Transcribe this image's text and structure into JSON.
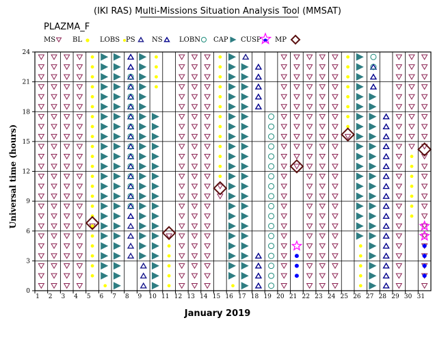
{
  "chart_data": {
    "type": "scatter",
    "title": "(IKI RAS) Multi-Missions Situation Analysis Tool (MMSAT)",
    "subtitle": "PLAZMA_F",
    "xlabel": "January 2019",
    "ylabel": "Universal time (hours)",
    "x_categories": [
      "1",
      "2",
      "3",
      "4",
      "5",
      "6",
      "7",
      "8",
      "9",
      "10",
      "11",
      "12",
      "13",
      "14",
      "15",
      "16",
      "17",
      "18",
      "19",
      "20",
      "21",
      "22",
      "23",
      "24",
      "25",
      "26",
      "27",
      "28",
      "29",
      "30",
      "31"
    ],
    "ylim": [
      0,
      24
    ],
    "yticks": [
      0,
      3,
      6,
      9,
      12,
      15,
      18,
      21,
      24
    ],
    "grid": true,
    "legend": [
      {
        "name": "MS",
        "marker": "triangle-down-open",
        "color": "#8b2252"
      },
      {
        "name": "BL",
        "marker": "dot",
        "color": "#ffff00"
      },
      {
        "name": "LOBS",
        "marker": "dot-small",
        "color": "#ffff00"
      },
      {
        "name": "PS",
        "marker": "triangle-up-open",
        "color": "#1a1a8c"
      },
      {
        "name": "NS",
        "marker": "triangle-up-open",
        "color": "#00008b"
      },
      {
        "name": "LOBN",
        "marker": "circle-open",
        "color": "#1a8a7a"
      },
      {
        "name": "CAP",
        "marker": "wedge",
        "color": "#2e7d82"
      },
      {
        "name": "CUSP",
        "marker": "dot",
        "color": "#0000ff"
      },
      {
        "name": "CUSP",
        "marker": "star-open",
        "color": "#ff00ff"
      },
      {
        "name": "MP",
        "marker": "diamond-open",
        "color": "#5a1010"
      }
    ],
    "series": [
      {
        "key": "MS",
        "segments": [
          {
            "day": 1,
            "from": 0,
            "to": 24
          },
          {
            "day": 2,
            "from": 0,
            "to": 24
          },
          {
            "day": 3,
            "from": 0,
            "to": 24
          },
          {
            "day": 4,
            "from": 0,
            "to": 24
          },
          {
            "day": 5,
            "from": 6,
            "to": 7
          },
          {
            "day": 11,
            "from": 5,
            "to": 6
          },
          {
            "day": 12,
            "from": 0,
            "to": 24
          },
          {
            "day": 13,
            "from": 0,
            "to": 24
          },
          {
            "day": 14,
            "from": 0,
            "to": 24
          },
          {
            "day": 15,
            "from": 9,
            "to": 11
          },
          {
            "day": 20,
            "from": 0,
            "to": 24
          },
          {
            "day": 21,
            "from": 12,
            "to": 24
          },
          {
            "day": 22,
            "from": 0,
            "to": 24
          },
          {
            "day": 23,
            "from": 0,
            "to": 24
          },
          {
            "day": 24,
            "from": 0,
            "to": 24
          },
          {
            "day": 25,
            "from": 15,
            "to": 16
          },
          {
            "day": 29,
            "from": 0,
            "to": 24
          },
          {
            "day": 30,
            "from": 14,
            "to": 24
          },
          {
            "day": 31,
            "from": 0,
            "to": 24
          }
        ]
      },
      {
        "key": "BL",
        "segments": [
          {
            "day": 5,
            "from": 1,
            "to": 24
          },
          {
            "day": 6,
            "from": 0,
            "to": 1
          },
          {
            "day": 10,
            "from": 20,
            "to": 24
          },
          {
            "day": 11,
            "from": 0,
            "to": 5
          },
          {
            "day": 15,
            "from": 11,
            "to": 24
          },
          {
            "day": 16,
            "from": 0,
            "to": 1
          },
          {
            "day": 25,
            "from": 16,
            "to": 24
          },
          {
            "day": 26,
            "from": 0,
            "to": 5
          },
          {
            "day": 30,
            "from": 7,
            "to": 14
          }
        ]
      },
      {
        "key": "PS",
        "segments": [
          {
            "day": 8,
            "from": 3,
            "to": 7
          },
          {
            "day": 9,
            "from": 0,
            "to": 3
          },
          {
            "day": 17,
            "from": 23,
            "to": 24
          }
        ]
      },
      {
        "key": "NS",
        "segments": [
          {
            "day": 8,
            "from": 7,
            "to": 24
          },
          {
            "day": 18,
            "from": 0,
            "to": 4
          },
          {
            "day": 18,
            "from": 18,
            "to": 23
          },
          {
            "day": 27,
            "from": 20,
            "to": 23
          },
          {
            "day": 28,
            "from": 0,
            "to": 18
          }
        ]
      },
      {
        "key": "LOBN",
        "segments": [
          {
            "day": 8,
            "from": 8,
            "to": 22
          },
          {
            "day": 19,
            "from": 0,
            "to": 18
          },
          {
            "day": 27,
            "from": 22,
            "to": 24
          }
        ]
      },
      {
        "key": "CAP",
        "segments": [
          {
            "day": 6,
            "from": 1,
            "to": 24
          },
          {
            "day": 7,
            "from": 0,
            "to": 24
          },
          {
            "day": 9,
            "from": 3,
            "to": 24
          },
          {
            "day": 10,
            "from": 0,
            "to": 18
          },
          {
            "day": 16,
            "from": 1,
            "to": 24
          },
          {
            "day": 17,
            "from": 0,
            "to": 23
          },
          {
            "day": 26,
            "from": 5,
            "to": 24
          },
          {
            "day": 27,
            "from": 0,
            "to": 20
          }
        ]
      },
      {
        "key": "CUSP_dot",
        "segments": [
          {
            "day": 21,
            "from": 1,
            "to": 4
          },
          {
            "day": 31,
            "from": 1,
            "to": 5
          }
        ]
      },
      {
        "key": "CUSP_star",
        "points": [
          {
            "day": 21,
            "ut": 4.5
          },
          {
            "day": 31,
            "ut": 5.5
          },
          {
            "day": 31,
            "ut": 6.5
          }
        ]
      },
      {
        "key": "MP",
        "points": [
          {
            "day": 5,
            "ut": 6.8
          },
          {
            "day": 11,
            "ut": 5.8
          },
          {
            "day": 15,
            "ut": 10.3
          },
          {
            "day": 21,
            "ut": 12.5
          },
          {
            "day": 25,
            "ut": 15.7
          },
          {
            "day": 31,
            "ut": 14.2
          }
        ]
      }
    ]
  }
}
